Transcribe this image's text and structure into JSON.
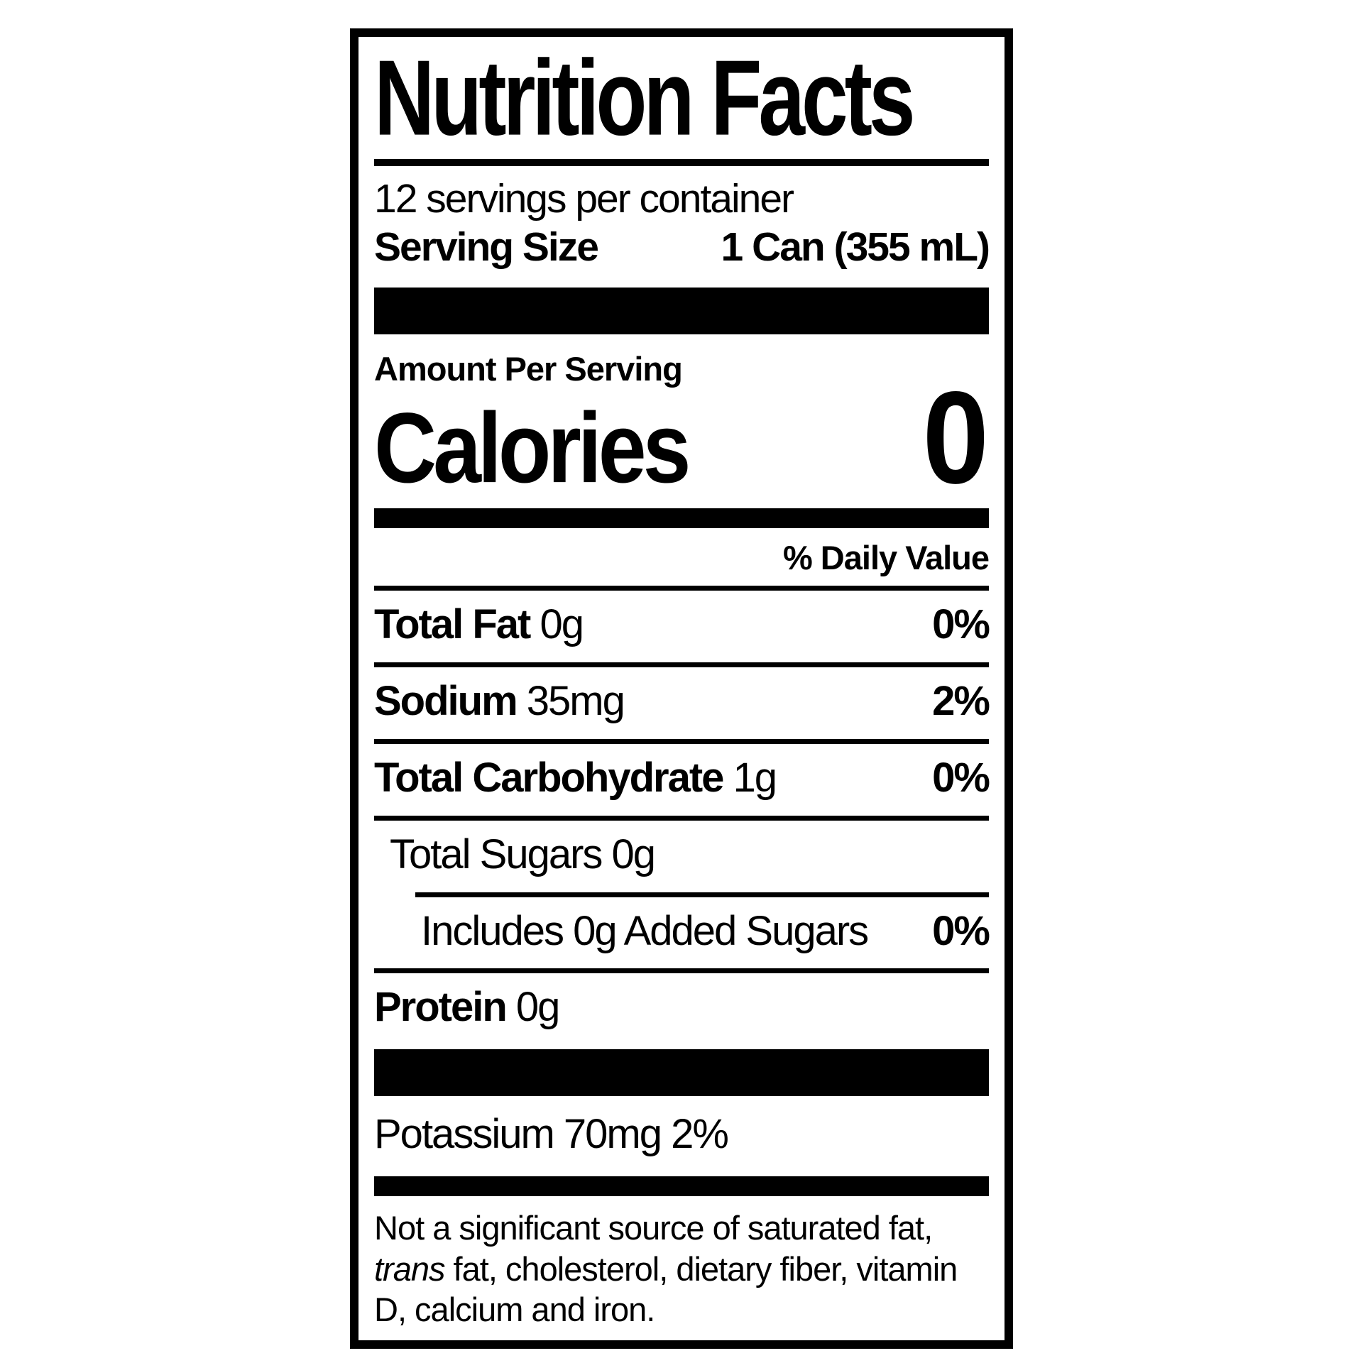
{
  "colors": {
    "ink": "#000000",
    "paper": "#ffffff"
  },
  "label": {
    "title": "Nutrition Facts",
    "servings_per_container": "12 servings per container",
    "serving_size_label": "Serving Size",
    "serving_size_value": "1 Can (355 mL)",
    "amount_per_serving": "Amount Per Serving",
    "calories_label": "Calories",
    "calories_value": "0",
    "daily_value_header": "% Daily Value",
    "rows": [
      {
        "name": "Total Fat",
        "name_bold": true,
        "amount": "0g",
        "dv": "0%",
        "indent": 0,
        "rule_below": "full"
      },
      {
        "name": "Sodium",
        "name_bold": true,
        "amount": "35mg",
        "dv": "2%",
        "indent": 0,
        "rule_below": "full"
      },
      {
        "name": "Total Carbohydrate",
        "name_bold": true,
        "amount": "1g",
        "dv": "0%",
        "indent": 0,
        "rule_below": "full"
      },
      {
        "name": "Total Sugars",
        "name_bold": false,
        "amount": "0g",
        "dv": "",
        "indent": 1,
        "rule_below": "indented"
      },
      {
        "name": "Includes 0g Added Sugars",
        "name_bold": false,
        "amount": "",
        "dv": "0%",
        "indent": 2,
        "rule_below": "full"
      },
      {
        "name": "Protein",
        "name_bold": true,
        "amount": "0g",
        "dv": "",
        "indent": 0,
        "rule_below": "none"
      }
    ],
    "potassium_line": "Potassium 70mg 2%",
    "footnote": {
      "pre_italic": "Not a significant source of saturated fat, ",
      "italic": "trans",
      "post_italic": " fat, cholesterol, dietary fiber, vitamin D, calcium and iron."
    }
  }
}
